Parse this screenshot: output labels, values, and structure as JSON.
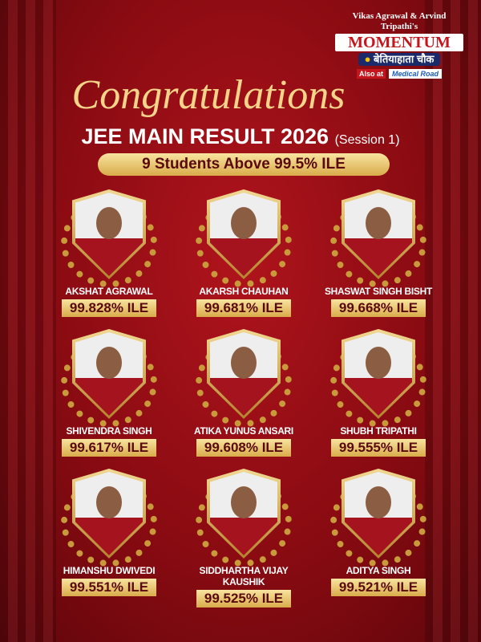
{
  "logo": {
    "byline": "Vikas Agrawal & Arvind Tripathi's",
    "brand": "MOMENTUM",
    "location": "बेतियाहाता चौक",
    "also_label": "Also at",
    "also_location": "Medical Road"
  },
  "headline": {
    "congrats": "Congratulations",
    "title": "JEE MAIN RESULT 2026",
    "session": "(Session 1)",
    "banner": "9 Students Above 99.5% ILE"
  },
  "students": [
    {
      "name": "Akshat Agrawal",
      "score": "99.828% ILE"
    },
    {
      "name": "Akarsh Chauhan",
      "score": "99.681% ILE"
    },
    {
      "name": "Shaswat Singh Bisht",
      "score": "99.668% ILE"
    },
    {
      "name": "Shivendra Singh",
      "score": "99.617% ILE"
    },
    {
      "name": "Atika Yunus Ansari",
      "score": "99.608% ILE"
    },
    {
      "name": "Shubh Tripathi",
      "score": "99.555% ILE"
    },
    {
      "name": "Himanshu Dwivedi",
      "score": "99.551% ILE"
    },
    {
      "name": "Siddhartha Vijay Kaushik",
      "score": "99.525% ILE"
    },
    {
      "name": "Aditya Singh",
      "score": "99.521% ILE"
    }
  ]
}
